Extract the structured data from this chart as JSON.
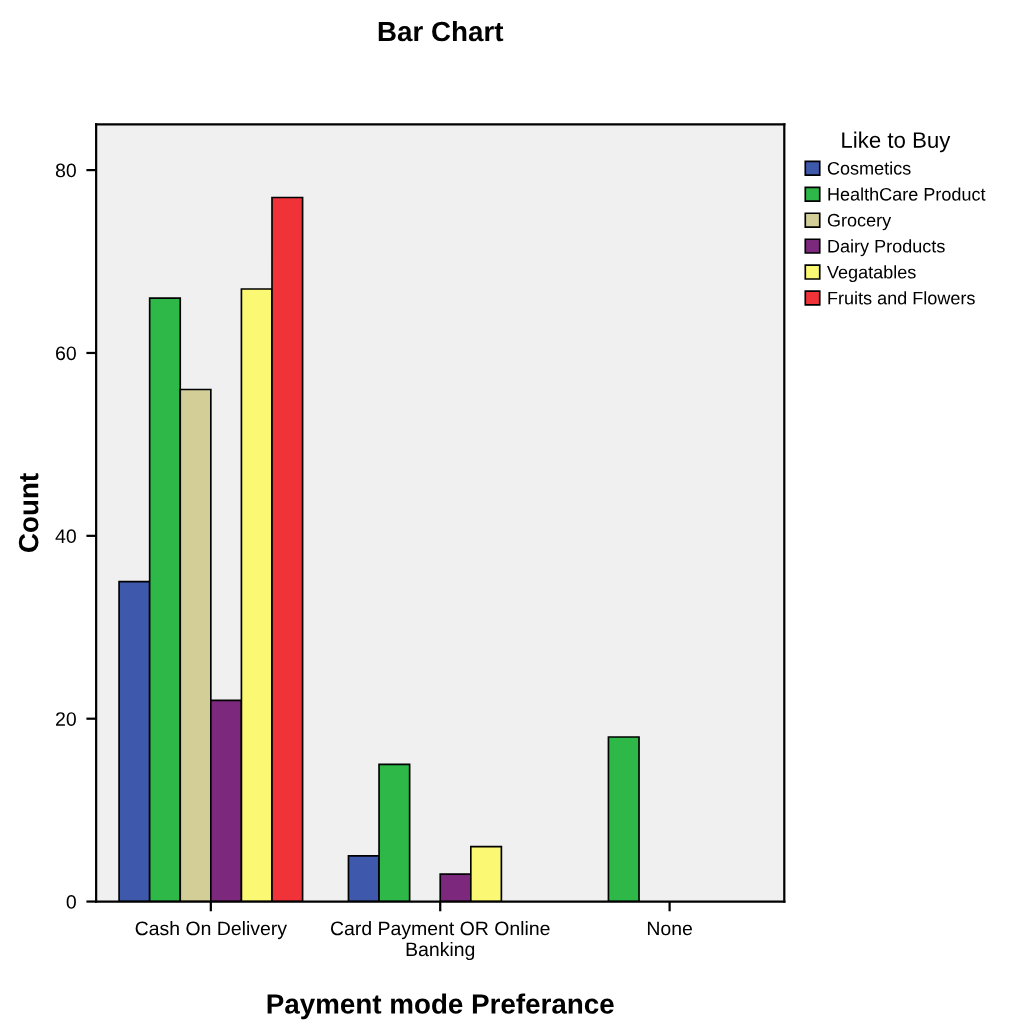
{
  "chart_data": {
    "type": "bar",
    "title": "Bar Chart",
    "xlabel": "Payment mode Preferance",
    "ylabel": "Count",
    "legend_title": "Like to Buy",
    "categories": [
      "Cash On Delivery",
      "Card Payment OR Online\nBanking",
      "None"
    ],
    "series": [
      {
        "name": "Cosmetics",
        "color": "#3e58ac",
        "values": [
          35,
          5,
          null
        ]
      },
      {
        "name": "HealthCare Product",
        "color": "#2eb848",
        "values": [
          66,
          15,
          18
        ]
      },
      {
        "name": "Grocery",
        "color": "#d3ce97",
        "values": [
          56,
          null,
          null
        ]
      },
      {
        "name": "Dairy Products",
        "color": "#7c287d",
        "values": [
          22,
          3,
          null
        ]
      },
      {
        "name": "Vegatables",
        "color": "#fbf873",
        "values": [
          67,
          6,
          null
        ]
      },
      {
        "name": "Fruits and Flowers",
        "color": "#ef3338",
        "values": [
          77,
          null,
          null
        ]
      }
    ],
    "ylim": [
      0,
      85
    ],
    "yticks": [
      0,
      20,
      40,
      60,
      80
    ],
    "legend": "right"
  }
}
